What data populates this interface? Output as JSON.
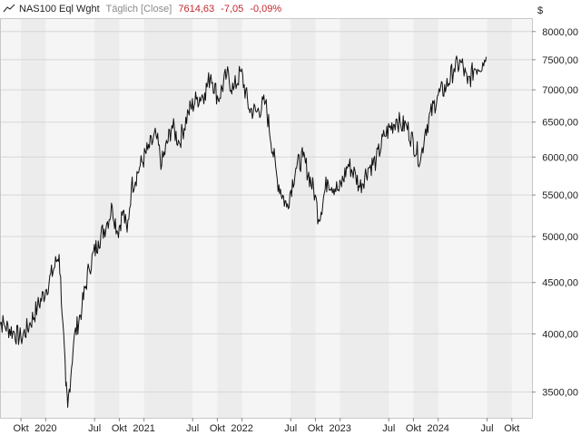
{
  "header": {
    "icon": "line-chart-icon",
    "instrument": "NAS100 Eql Wght",
    "mode": "Täglich [Close]",
    "last": "7614,63",
    "change": "-7,05",
    "change_pct": "-0,09%",
    "change_color": "#c0282c"
  },
  "colors": {
    "band": "#ececec",
    "plot_bg": "#f5f5f5",
    "line": "#111111",
    "grid": "#d6d6d6"
  },
  "chart_data": {
    "type": "line",
    "series": [
      {
        "x": [
          "2019-07-01",
          "2019-08-01",
          "2019-09-01",
          "2019-10-01",
          "2019-11-01",
          "2019-12-01",
          "2020-01-01",
          "2020-02-10",
          "2020-02-20",
          "2020-03-05",
          "2020-03-16",
          "2020-03-23",
          "2020-04-15",
          "2020-05-15",
          "2020-06-10",
          "2020-07-15",
          "2020-08-15",
          "2020-09-05",
          "2020-09-25",
          "2020-10-15",
          "2020-10-30",
          "2020-11-15",
          "2020-12-15",
          "2021-01-15",
          "2021-02-15",
          "2021-03-08",
          "2021-04-15",
          "2021-05-12",
          "2021-06-15",
          "2021-07-15",
          "2021-08-15",
          "2021-09-07",
          "2021-10-04",
          "2021-11-05",
          "2021-11-30",
          "2021-12-28",
          "2022-01-27",
          "2022-02-24",
          "2022-03-29",
          "2022-05-12",
          "2022-06-16",
          "2022-07-20",
          "2022-08-16",
          "2022-09-30",
          "2022-10-13",
          "2022-11-15",
          "2022-12-28",
          "2023-01-31",
          "2023-02-28",
          "2023-03-15",
          "2023-04-15",
          "2023-05-15",
          "2023-06-15",
          "2023-07-31",
          "2023-08-15",
          "2023-09-05",
          "2023-10-27",
          "2023-11-15",
          "2023-12-29",
          "2024-01-31",
          "2024-02-29",
          "2024-03-28",
          "2024-04-19",
          "2024-05-15",
          "2024-06-15",
          "2024-06-28"
        ],
        "values": [
          4150,
          4080,
          4020,
          3960,
          4080,
          4250,
          4420,
          4720,
          4800,
          4100,
          3550,
          3380,
          3950,
          4250,
          4650,
          4950,
          5150,
          5350,
          5050,
          5300,
          5050,
          5600,
          5850,
          6100,
          6300,
          5900,
          6450,
          6200,
          6650,
          6850,
          6950,
          7250,
          6850,
          7250,
          7000,
          7300,
          6700,
          6650,
          6800,
          5700,
          5350,
          5850,
          6000,
          5500,
          5200,
          5700,
          5550,
          5900,
          5750,
          5600,
          5850,
          5950,
          6300,
          6550,
          6450,
          6450,
          5950,
          6400,
          6900,
          7050,
          7350,
          7450,
          7100,
          7350,
          7450,
          7550
        ]
      }
    ],
    "yticks": [
      3500,
      4000,
      4500,
      5000,
      5500,
      6000,
      6500,
      7000,
      7500,
      8000
    ],
    "ytick_labels": [
      "3500,00",
      "4000,00",
      "4500,00",
      "5000,00",
      "5500,00",
      "6000,00",
      "6500,00",
      "7000,00",
      "7500,00",
      "8000,00"
    ],
    "y_unit": "$",
    "y_scale": "log",
    "ylim": [
      3300,
      8250
    ],
    "xlim": [
      "2019-07-15",
      "2024-12-15"
    ],
    "xticks": [
      {
        "date": "2019-10-01",
        "label": "Okt"
      },
      {
        "date": "2020-01-01",
        "label": "2020"
      },
      {
        "date": "2020-07-01",
        "label": "Jul"
      },
      {
        "date": "2020-10-01",
        "label": "Okt"
      },
      {
        "date": "2021-01-01",
        "label": "2021"
      },
      {
        "date": "2021-07-01",
        "label": "Jul"
      },
      {
        "date": "2021-10-01",
        "label": "Okt"
      },
      {
        "date": "2022-01-01",
        "label": "2022"
      },
      {
        "date": "2022-07-01",
        "label": "Jul"
      },
      {
        "date": "2022-10-01",
        "label": "Okt"
      },
      {
        "date": "2023-01-01",
        "label": "2023"
      },
      {
        "date": "2023-07-01",
        "label": "Jul"
      },
      {
        "date": "2023-10-01",
        "label": "Okt"
      },
      {
        "date": "2024-01-01",
        "label": "2024"
      },
      {
        "date": "2024-07-01",
        "label": "Jul"
      },
      {
        "date": "2024-10-01",
        "label": "Okt"
      }
    ],
    "grid": true,
    "legend": "none"
  }
}
